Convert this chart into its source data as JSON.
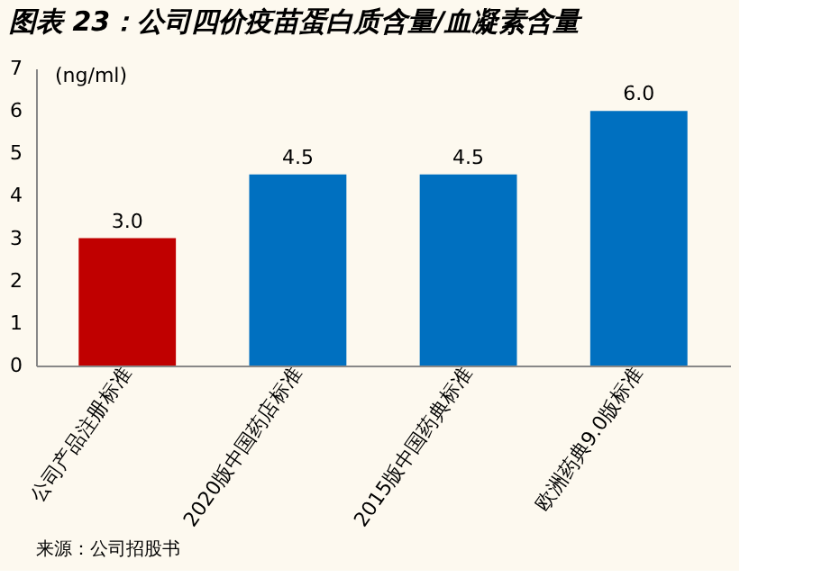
{
  "chart_data": {
    "type": "bar",
    "title": "图表 23：公司四价疫苗蛋白质含量/血凝素含量",
    "ylabel": "(ng/ml)",
    "categories": [
      "公司产品注册标准",
      "2020版中国药店标准",
      "2015版中国药典标准",
      "欧洲药典9.0版标准"
    ],
    "values": [
      3.0,
      4.5,
      4.5,
      6.0
    ],
    "colors": [
      "#c00000",
      "#0070c0",
      "#0070c0",
      "#0070c0"
    ],
    "value_labels": [
      "3.0",
      "4.5",
      "4.5",
      "6.0"
    ],
    "ylim": [
      0,
      7
    ],
    "yticks": [
      0,
      1,
      2,
      3,
      4,
      5,
      6,
      7
    ],
    "annotations": [
      "来源：公司招股书"
    ]
  }
}
